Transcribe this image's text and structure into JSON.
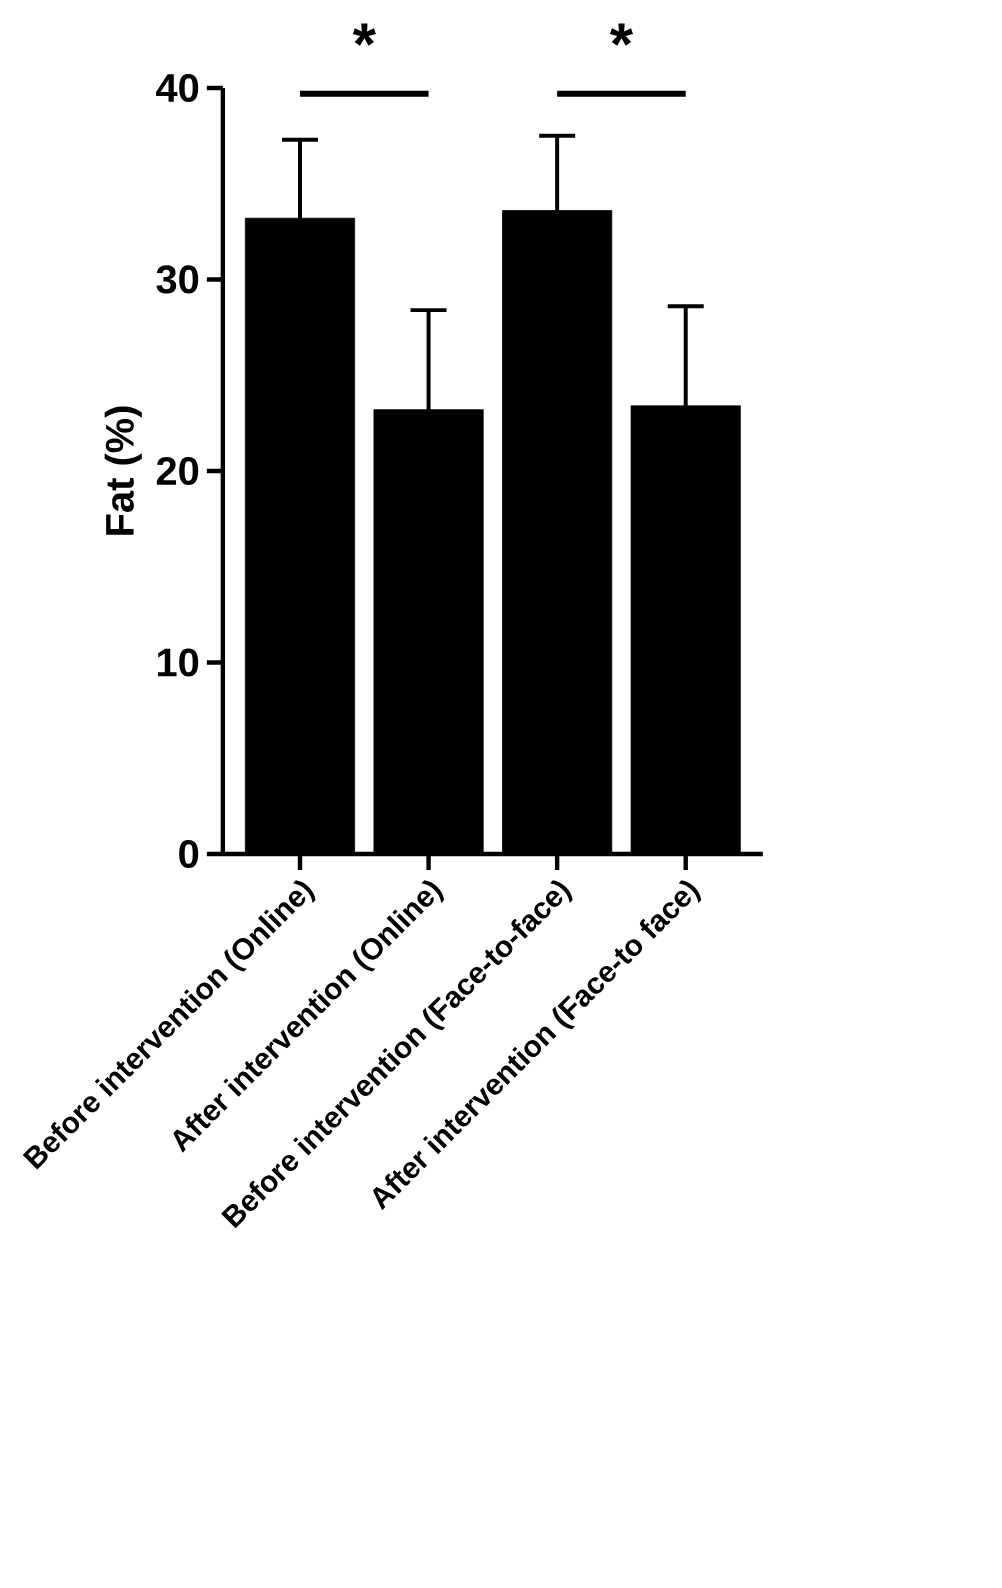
{
  "chart_data": {
    "type": "bar",
    "ylabel": "Fat (%)",
    "categories": [
      "Before intervention (Online)",
      "After intervention (Online)",
      "Before intervention (Face-to-face)",
      "After intervention (Face-to face)"
    ],
    "values": [
      33.2,
      23.2,
      33.6,
      23.4
    ],
    "errors": [
      4.1,
      5.2,
      3.9,
      5.2
    ],
    "color": "#000000",
    "ylim": [
      0,
      40
    ],
    "yticks": [
      0,
      10,
      20,
      30,
      40
    ],
    "annotations": [
      "*",
      "*"
    ]
  }
}
